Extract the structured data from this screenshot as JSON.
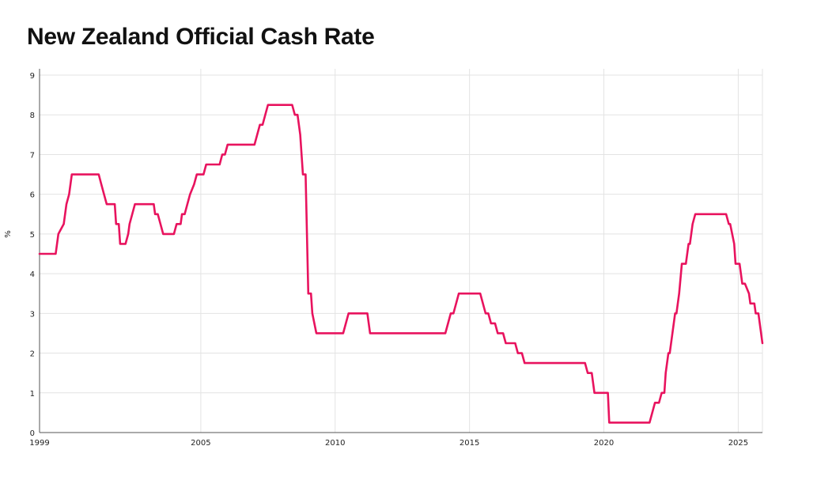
{
  "chart_data": {
    "type": "line",
    "title": "New Zealand Official Cash Rate",
    "xlabel": "",
    "ylabel": "%",
    "xlim": [
      1999.0,
      2025.9
    ],
    "ylim": [
      0,
      9
    ],
    "x_ticks": [
      {
        "value": 1999,
        "label": "1999"
      },
      {
        "value": 2005,
        "label": "2005"
      },
      {
        "value": 2010,
        "label": "2010"
      },
      {
        "value": 2015,
        "label": "2015"
      },
      {
        "value": 2020,
        "label": "2020"
      },
      {
        "value": 2025,
        "label": "2025"
      }
    ],
    "y_ticks": [
      {
        "value": 0,
        "label": "0"
      },
      {
        "value": 1,
        "label": "1"
      },
      {
        "value": 2,
        "label": "2"
      },
      {
        "value": 3,
        "label": "3"
      },
      {
        "value": 4,
        "label": "4"
      },
      {
        "value": 5,
        "label": "5"
      },
      {
        "value": 6,
        "label": "6"
      },
      {
        "value": 7,
        "label": "7"
      },
      {
        "value": 8,
        "label": "8"
      },
      {
        "value": 9,
        "label": "9"
      }
    ],
    "grid": true,
    "series": [
      {
        "name": "Official Cash Rate",
        "color": "#e8135e",
        "step": true,
        "points": [
          [
            1999.0,
            4.5
          ],
          [
            1999.6,
            4.5
          ],
          [
            1999.7,
            5.0
          ],
          [
            1999.9,
            5.25
          ],
          [
            2000.0,
            5.75
          ],
          [
            2000.1,
            6.0
          ],
          [
            2000.2,
            6.5
          ],
          [
            2001.2,
            6.5
          ],
          [
            2001.3,
            6.25
          ],
          [
            2001.4,
            6.0
          ],
          [
            2001.5,
            5.75
          ],
          [
            2001.8,
            5.75
          ],
          [
            2001.85,
            5.25
          ],
          [
            2001.95,
            5.25
          ],
          [
            2002.0,
            4.75
          ],
          [
            2002.2,
            4.75
          ],
          [
            2002.3,
            5.0
          ],
          [
            2002.35,
            5.25
          ],
          [
            2002.45,
            5.5
          ],
          [
            2002.55,
            5.75
          ],
          [
            2003.25,
            5.75
          ],
          [
            2003.3,
            5.5
          ],
          [
            2003.4,
            5.5
          ],
          [
            2003.5,
            5.25
          ],
          [
            2003.6,
            5.0
          ],
          [
            2004.0,
            5.0
          ],
          [
            2004.1,
            5.25
          ],
          [
            2004.25,
            5.25
          ],
          [
            2004.3,
            5.5
          ],
          [
            2004.4,
            5.5
          ],
          [
            2004.5,
            5.75
          ],
          [
            2004.6,
            6.0
          ],
          [
            2004.75,
            6.25
          ],
          [
            2004.85,
            6.5
          ],
          [
            2005.1,
            6.5
          ],
          [
            2005.2,
            6.75
          ],
          [
            2005.7,
            6.75
          ],
          [
            2005.8,
            7.0
          ],
          [
            2005.9,
            7.0
          ],
          [
            2006.0,
            7.25
          ],
          [
            2007.0,
            7.25
          ],
          [
            2007.1,
            7.5
          ],
          [
            2007.2,
            7.75
          ],
          [
            2007.3,
            7.75
          ],
          [
            2007.4,
            8.0
          ],
          [
            2007.5,
            8.25
          ],
          [
            2008.4,
            8.25
          ],
          [
            2008.5,
            8.0
          ],
          [
            2008.6,
            8.0
          ],
          [
            2008.7,
            7.5
          ],
          [
            2008.8,
            6.5
          ],
          [
            2008.9,
            6.5
          ],
          [
            2008.95,
            5.0
          ],
          [
            2009.0,
            3.5
          ],
          [
            2009.1,
            3.5
          ],
          [
            2009.15,
            3.0
          ],
          [
            2009.3,
            2.5
          ],
          [
            2010.3,
            2.5
          ],
          [
            2010.4,
            2.75
          ],
          [
            2010.5,
            3.0
          ],
          [
            2011.2,
            3.0
          ],
          [
            2011.3,
            2.5
          ],
          [
            2014.1,
            2.5
          ],
          [
            2014.2,
            2.75
          ],
          [
            2014.3,
            3.0
          ],
          [
            2014.4,
            3.0
          ],
          [
            2014.5,
            3.25
          ],
          [
            2014.6,
            3.5
          ],
          [
            2015.4,
            3.5
          ],
          [
            2015.5,
            3.25
          ],
          [
            2015.6,
            3.0
          ],
          [
            2015.7,
            3.0
          ],
          [
            2015.8,
            2.75
          ],
          [
            2015.95,
            2.75
          ],
          [
            2016.05,
            2.5
          ],
          [
            2016.25,
            2.5
          ],
          [
            2016.35,
            2.25
          ],
          [
            2016.7,
            2.25
          ],
          [
            2016.8,
            2.0
          ],
          [
            2016.95,
            2.0
          ],
          [
            2017.05,
            1.75
          ],
          [
            2019.3,
            1.75
          ],
          [
            2019.4,
            1.5
          ],
          [
            2019.55,
            1.5
          ],
          [
            2019.65,
            1.0
          ],
          [
            2020.15,
            1.0
          ],
          [
            2020.2,
            0.25
          ],
          [
            2021.7,
            0.25
          ],
          [
            2021.8,
            0.5
          ],
          [
            2021.9,
            0.75
          ],
          [
            2022.05,
            0.75
          ],
          [
            2022.15,
            1.0
          ],
          [
            2022.25,
            1.0
          ],
          [
            2022.3,
            1.5
          ],
          [
            2022.4,
            2.0
          ],
          [
            2022.45,
            2.0
          ],
          [
            2022.55,
            2.5
          ],
          [
            2022.65,
            3.0
          ],
          [
            2022.7,
            3.0
          ],
          [
            2022.8,
            3.5
          ],
          [
            2022.9,
            4.25
          ],
          [
            2023.05,
            4.25
          ],
          [
            2023.15,
            4.75
          ],
          [
            2023.2,
            4.75
          ],
          [
            2023.3,
            5.25
          ],
          [
            2023.4,
            5.5
          ],
          [
            2024.55,
            5.5
          ],
          [
            2024.65,
            5.25
          ],
          [
            2024.7,
            5.25
          ],
          [
            2024.85,
            4.75
          ],
          [
            2024.9,
            4.25
          ],
          [
            2025.05,
            4.25
          ],
          [
            2025.15,
            3.75
          ],
          [
            2025.25,
            3.75
          ],
          [
            2025.4,
            3.5
          ],
          [
            2025.45,
            3.25
          ],
          [
            2025.6,
            3.25
          ],
          [
            2025.65,
            3.0
          ],
          [
            2025.75,
            3.0
          ],
          [
            2025.9,
            2.25
          ]
        ]
      }
    ]
  }
}
